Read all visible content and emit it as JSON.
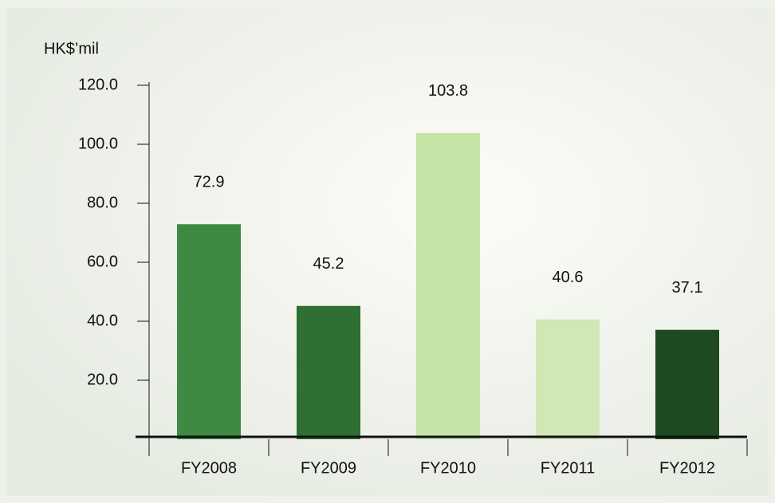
{
  "chart_data": {
    "type": "bar",
    "y_axis_label": "HK$’mil",
    "categories": [
      "FY2008",
      "FY2009",
      "FY2010",
      "FY2011",
      "FY2012"
    ],
    "values": [
      72.9,
      45.2,
      103.8,
      40.6,
      37.1
    ],
    "colors": [
      "#3e8a43",
      "#2f7032",
      "#c6e4a6",
      "#cfe8b5",
      "#1e4a22"
    ],
    "ylim": [
      0,
      120
    ],
    "yticks": [
      {
        "value": 20,
        "label": "20.0"
      },
      {
        "value": 40,
        "label": "40.0"
      },
      {
        "value": 60,
        "label": "60.0"
      },
      {
        "value": 80,
        "label": "80.0"
      },
      {
        "value": 100,
        "label": "100.0"
      },
      {
        "value": 120,
        "label": "120.0"
      }
    ],
    "grid": false
  }
}
